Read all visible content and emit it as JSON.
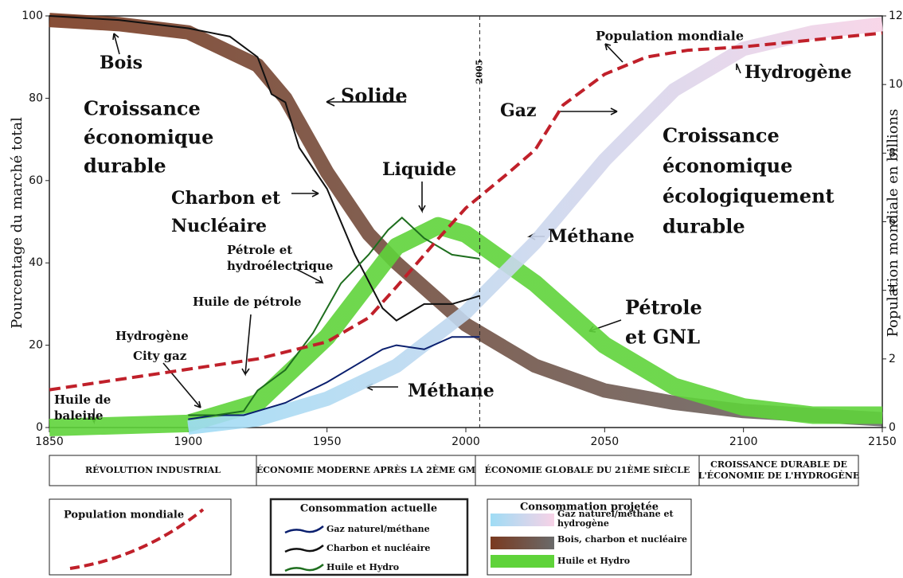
{
  "chart_data": {
    "type": "line",
    "xlim": [
      1850,
      2150
    ],
    "xticks": [
      1850,
      1900,
      1950,
      2000,
      2050,
      2100,
      2150
    ],
    "ylim": [
      0,
      100
    ],
    "yticks": [
      0,
      20,
      40,
      60,
      80,
      100
    ],
    "y2lim": [
      0,
      12
    ],
    "y2ticks": [
      0,
      2,
      4,
      6,
      8,
      10,
      12
    ],
    "ylabel": "Pourcentage du marché total",
    "y2label": "Population mondiale en billions",
    "vline": 2005,
    "population": {
      "name": "Population mondiale",
      "color": "#c0202a",
      "axis": "y2",
      "x": [
        1850,
        1900,
        1925,
        1950,
        1965,
        1975,
        1990,
        2000,
        2015,
        2025,
        2035,
        2050,
        2065,
        2080,
        2100,
        2125,
        2150
      ],
      "values": [
        1.1,
        1.7,
        2.0,
        2.5,
        3.2,
        4.1,
        5.5,
        6.4,
        7.4,
        8.1,
        9.4,
        10.3,
        10.8,
        11.0,
        11.1,
        11.3,
        11.5
      ]
    },
    "current": {
      "title": "Consommation actuelle",
      "series": [
        {
          "name": "Gaz naturel/méthane",
          "color": "#0a1f6e",
          "x": [
            1900,
            1910,
            1920,
            1925,
            1935,
            1950,
            1960,
            1970,
            1975,
            1985,
            1995,
            2005
          ],
          "values": [
            2,
            3,
            3,
            4,
            6,
            11,
            15,
            19,
            20,
            19,
            22,
            22
          ]
        },
        {
          "name": "Charbon et nucléaire",
          "color": "#111111",
          "x": [
            1850,
            1875,
            1900,
            1915,
            1925,
            1930,
            1935,
            1940,
            1950,
            1960,
            1970,
            1975,
            1985,
            1995,
            2005
          ],
          "values": [
            100,
            99,
            97,
            95,
            90,
            81,
            79,
            68,
            58,
            42,
            29,
            26,
            30,
            30,
            32
          ]
        },
        {
          "name": "Huile et Hydro",
          "color": "#1e6e1e",
          "x": [
            1900,
            1910,
            1920,
            1925,
            1935,
            1945,
            1955,
            1965,
            1972,
            1977,
            1985,
            1995,
            2005
          ],
          "values": [
            3,
            3,
            4,
            9,
            14,
            23,
            35,
            42,
            48,
            51,
            46,
            42,
            41
          ]
        }
      ]
    },
    "projected": {
      "title": "Consommation projetée",
      "series": [
        {
          "name": "Gaz naturel/méthane et hydrogène",
          "colors": [
            "#9fdcf5",
            "#f7d2e6"
          ],
          "x": [
            1900,
            1925,
            1950,
            1975,
            2000,
            2025,
            2050,
            2075,
            2100,
            2125,
            2150
          ],
          "values": [
            0,
            2,
            7,
            15,
            28,
            45,
            65,
            82,
            92,
            96,
            98
          ]
        },
        {
          "name": "Bois, charbon et nucléaire",
          "colors": [
            "#7a3a20",
            "#6a6a6a"
          ],
          "x": [
            1850,
            1875,
            1900,
            1925,
            1935,
            1950,
            1965,
            1975,
            2000,
            2025,
            2050,
            2075,
            2100,
            2125,
            2150
          ],
          "values": [
            99,
            98,
            96,
            88,
            80,
            62,
            47,
            40,
            25,
            15,
            9,
            6,
            4,
            3,
            2
          ]
        },
        {
          "name": "Huile et Hydro",
          "colors": [
            "#5fd33a",
            "#5fd33a"
          ],
          "x": [
            1850,
            1900,
            1925,
            1950,
            1975,
            1990,
            2000,
            2025,
            2050,
            2075,
            2100,
            2125,
            2150
          ],
          "values": [
            0,
            1,
            6,
            22,
            44,
            49,
            47,
            35,
            20,
            10,
            5,
            3,
            3
          ]
        }
      ]
    },
    "eras": [
      [
        "RÉVOLUTION INDUSTRIAL"
      ],
      [
        "ÉCONOMIE MODERNE APRÈS LA 2ÈME GM"
      ],
      [
        "ÉCONOMIE GLOBALE DU 21ÈME SIÈCLE"
      ],
      [
        "CROISSANCE DURABLE DE",
        "L'ÉCONOMIE DE L'HYDROGÈNE"
      ]
    ],
    "annotations": [
      [
        "Bois"
      ],
      [
        "Croissance",
        "économique",
        "durable"
      ],
      [
        "Solide"
      ],
      [
        "Charbon et",
        "Nucléaire"
      ],
      [
        "Liquide"
      ],
      [
        "Pétrole et",
        "hydroélectrique"
      ],
      [
        "Huile de pétrole"
      ],
      [
        "Hydrogène",
        "City gaz"
      ],
      [
        "Huile de",
        "baleine"
      ],
      [
        "Méthane"
      ],
      [
        "Gaz"
      ],
      [
        "Population mondiale"
      ],
      [
        "Hydrogène"
      ],
      [
        "Croissance",
        "économique",
        "écologiquement",
        "durable"
      ],
      [
        "Méthane"
      ],
      [
        "Pétrole",
        "et GNL"
      ]
    ]
  }
}
